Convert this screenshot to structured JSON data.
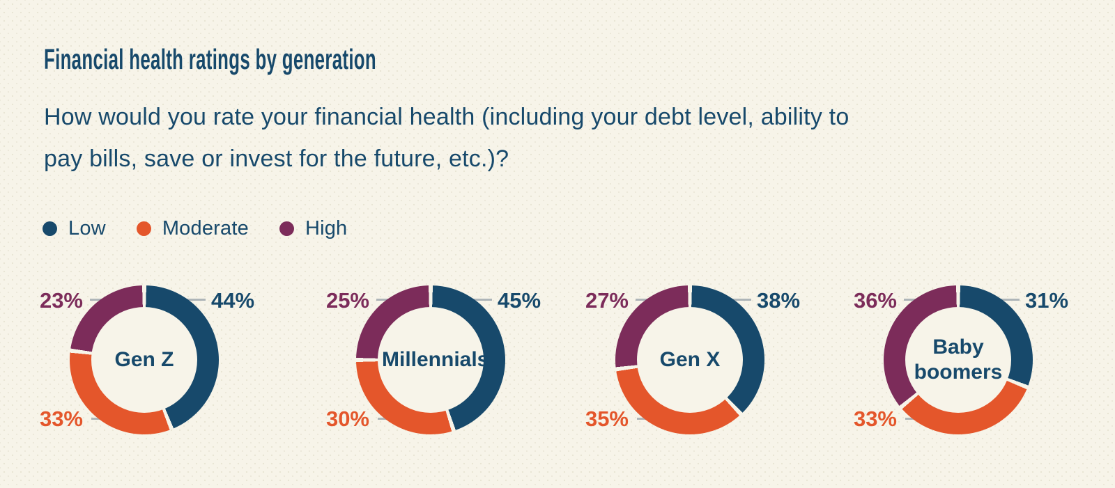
{
  "page": {
    "background_color": "#f7f4e9",
    "text_color": "#17496b"
  },
  "header": {
    "title": "Financial health ratings by generation",
    "subtitle_line1": "How would you rate your financial health (including your debt level, ability to",
    "subtitle_line2": "pay bills, save or invest for the future, etc.)?"
  },
  "legend": {
    "position": "top-left",
    "items": [
      {
        "label": "Low",
        "color": "#17496b"
      },
      {
        "label": "Moderate",
        "color": "#e4562b"
      },
      {
        "label": "High",
        "color": "#7c2c5a"
      }
    ]
  },
  "chart_data": {
    "type": "pie",
    "subtype": "donut",
    "title": "Financial health ratings by generation",
    "question": "How would you rate your financial health (including your debt level, ability to pay bills, save or invest for the future, etc.)?",
    "value_suffix": "%",
    "series_names": [
      "Low",
      "Moderate",
      "High"
    ],
    "series_colors": {
      "Low": "#17496b",
      "Moderate": "#e4562b",
      "High": "#7c2c5a"
    },
    "segment_order_clockwise_from_top": [
      "Low",
      "Moderate",
      "High"
    ],
    "label_layout": {
      "Low": "top-right",
      "Moderate": "bottom-left",
      "High": "top-left"
    },
    "leader_line_color": "#aeb5b8",
    "groups": [
      {
        "name": "Gen Z",
        "values": {
          "Low": 44,
          "Moderate": 33,
          "High": 23
        }
      },
      {
        "name": "Millennials",
        "values": {
          "Low": 45,
          "Moderate": 30,
          "High": 25
        }
      },
      {
        "name": "Gen X",
        "values": {
          "Low": 38,
          "Moderate": 35,
          "High": 27
        }
      },
      {
        "name": "Baby boomers",
        "values": {
          "Low": 31,
          "Moderate": 33,
          "High": 36
        }
      }
    ]
  }
}
